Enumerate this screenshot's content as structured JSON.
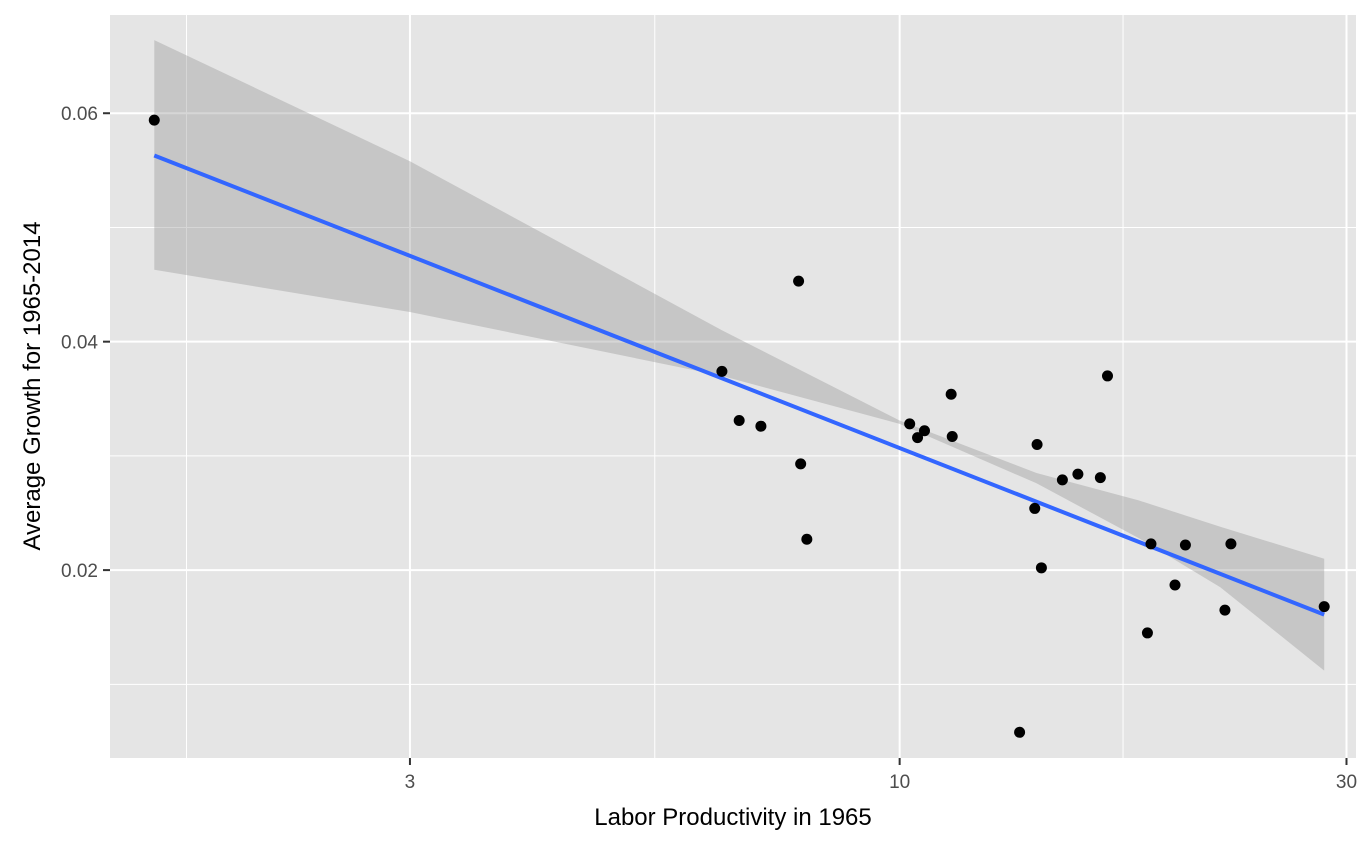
{
  "chart_data": {
    "type": "scatter",
    "title": "",
    "xlabel": "Labor Productivity in 1965",
    "ylabel": "Average Growth for 1965-2014",
    "x_scale": "log10",
    "xlim": [
      1.435,
      30.71
    ],
    "ylim": [
      0.00355,
      0.0686
    ],
    "x_ticks": [
      3,
      10,
      30
    ],
    "x_tick_labels": [
      "3",
      "10",
      "30"
    ],
    "y_ticks": [
      0.02,
      0.04,
      0.06
    ],
    "y_tick_labels": [
      "0.02",
      "0.04",
      "0.06"
    ],
    "x_minor_ticks": [
      1.732,
      5.477,
      17.32
    ],
    "y_minor_ticks": [
      0.01,
      0.03,
      0.05
    ],
    "grid": true,
    "legend": "none",
    "colors": {
      "panel_background": "#e5e5e5",
      "grid": "#ffffff",
      "points": "#000000",
      "fit_line": "#3366ff",
      "confidence_band": "#999999"
    },
    "points": [
      {
        "x": 1.6,
        "y": 0.0594
      },
      {
        "x": 6.46,
        "y": 0.0374
      },
      {
        "x": 6.74,
        "y": 0.0331
      },
      {
        "x": 7.11,
        "y": 0.0326
      },
      {
        "x": 7.8,
        "y": 0.0453
      },
      {
        "x": 7.84,
        "y": 0.0293
      },
      {
        "x": 7.96,
        "y": 0.0227
      },
      {
        "x": 10.25,
        "y": 0.0328
      },
      {
        "x": 10.45,
        "y": 0.0316
      },
      {
        "x": 10.63,
        "y": 0.0322
      },
      {
        "x": 11.35,
        "y": 0.0354
      },
      {
        "x": 11.38,
        "y": 0.0317
      },
      {
        "x": 13.43,
        "y": 0.0058
      },
      {
        "x": 13.94,
        "y": 0.0254
      },
      {
        "x": 14.02,
        "y": 0.031
      },
      {
        "x": 14.17,
        "y": 0.0202
      },
      {
        "x": 14.92,
        "y": 0.0279
      },
      {
        "x": 15.5,
        "y": 0.0284
      },
      {
        "x": 16.38,
        "y": 0.0281
      },
      {
        "x": 16.67,
        "y": 0.037
      },
      {
        "x": 18.39,
        "y": 0.0145
      },
      {
        "x": 18.55,
        "y": 0.0223
      },
      {
        "x": 19.68,
        "y": 0.0187
      },
      {
        "x": 20.19,
        "y": 0.0222
      },
      {
        "x": 22.25,
        "y": 0.0165
      },
      {
        "x": 22.58,
        "y": 0.0223
      },
      {
        "x": 28.4,
        "y": 0.0168
      }
    ],
    "fit_line": {
      "x": [
        1.6,
        28.4
      ],
      "y": [
        0.0563,
        0.0161
      ]
    },
    "confidence_band": {
      "x": [
        1.6,
        3.0,
        6.46,
        10.0,
        14.0,
        18.0,
        22.0,
        28.4
      ],
      "lower": [
        0.0463,
        0.0426,
        0.037,
        0.0328,
        0.0276,
        0.0228,
        0.0185,
        0.0112
      ],
      "upper": [
        0.0664,
        0.0558,
        0.041,
        0.0331,
        0.0285,
        0.0261,
        0.0238,
        0.021
      ]
    }
  }
}
